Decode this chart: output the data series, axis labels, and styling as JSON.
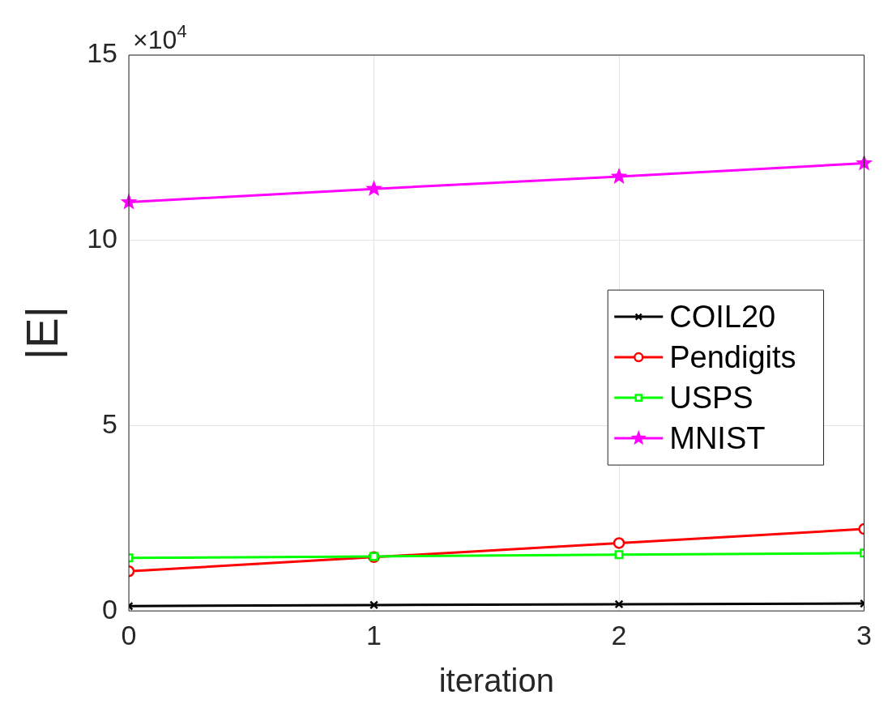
{
  "chart_data": {
    "type": "line",
    "xlabel": "iteration",
    "ylabel": "|E|",
    "x": [
      0,
      1,
      2,
      3
    ],
    "xlim": [
      0,
      3
    ],
    "xticks": [
      0,
      1,
      2,
      3
    ],
    "ylim": [
      0,
      15
    ],
    "yticks": [
      0,
      5,
      10,
      15
    ],
    "grid": true,
    "legend": "right",
    "line_style": "solid",
    "annotations": [
      "×10$^{4}$"
    ],
    "series": [
      {
        "name": "COIL20",
        "color": "#000000",
        "marker": "cross",
        "values": [
          0.13,
          0.16,
          0.18,
          0.2
        ]
      },
      {
        "name": "Pendigits",
        "color": "#ff0000",
        "marker": "circle",
        "values": [
          1.07,
          1.45,
          1.83,
          2.21
        ]
      },
      {
        "name": "USPS",
        "color": "#00ff00",
        "marker": "square",
        "values": [
          1.43,
          1.47,
          1.52,
          1.56
        ]
      },
      {
        "name": "MNIST",
        "color": "#ff00ff",
        "marker": "star",
        "values": [
          11.03,
          11.39,
          11.72,
          12.08
        ]
      }
    ]
  }
}
